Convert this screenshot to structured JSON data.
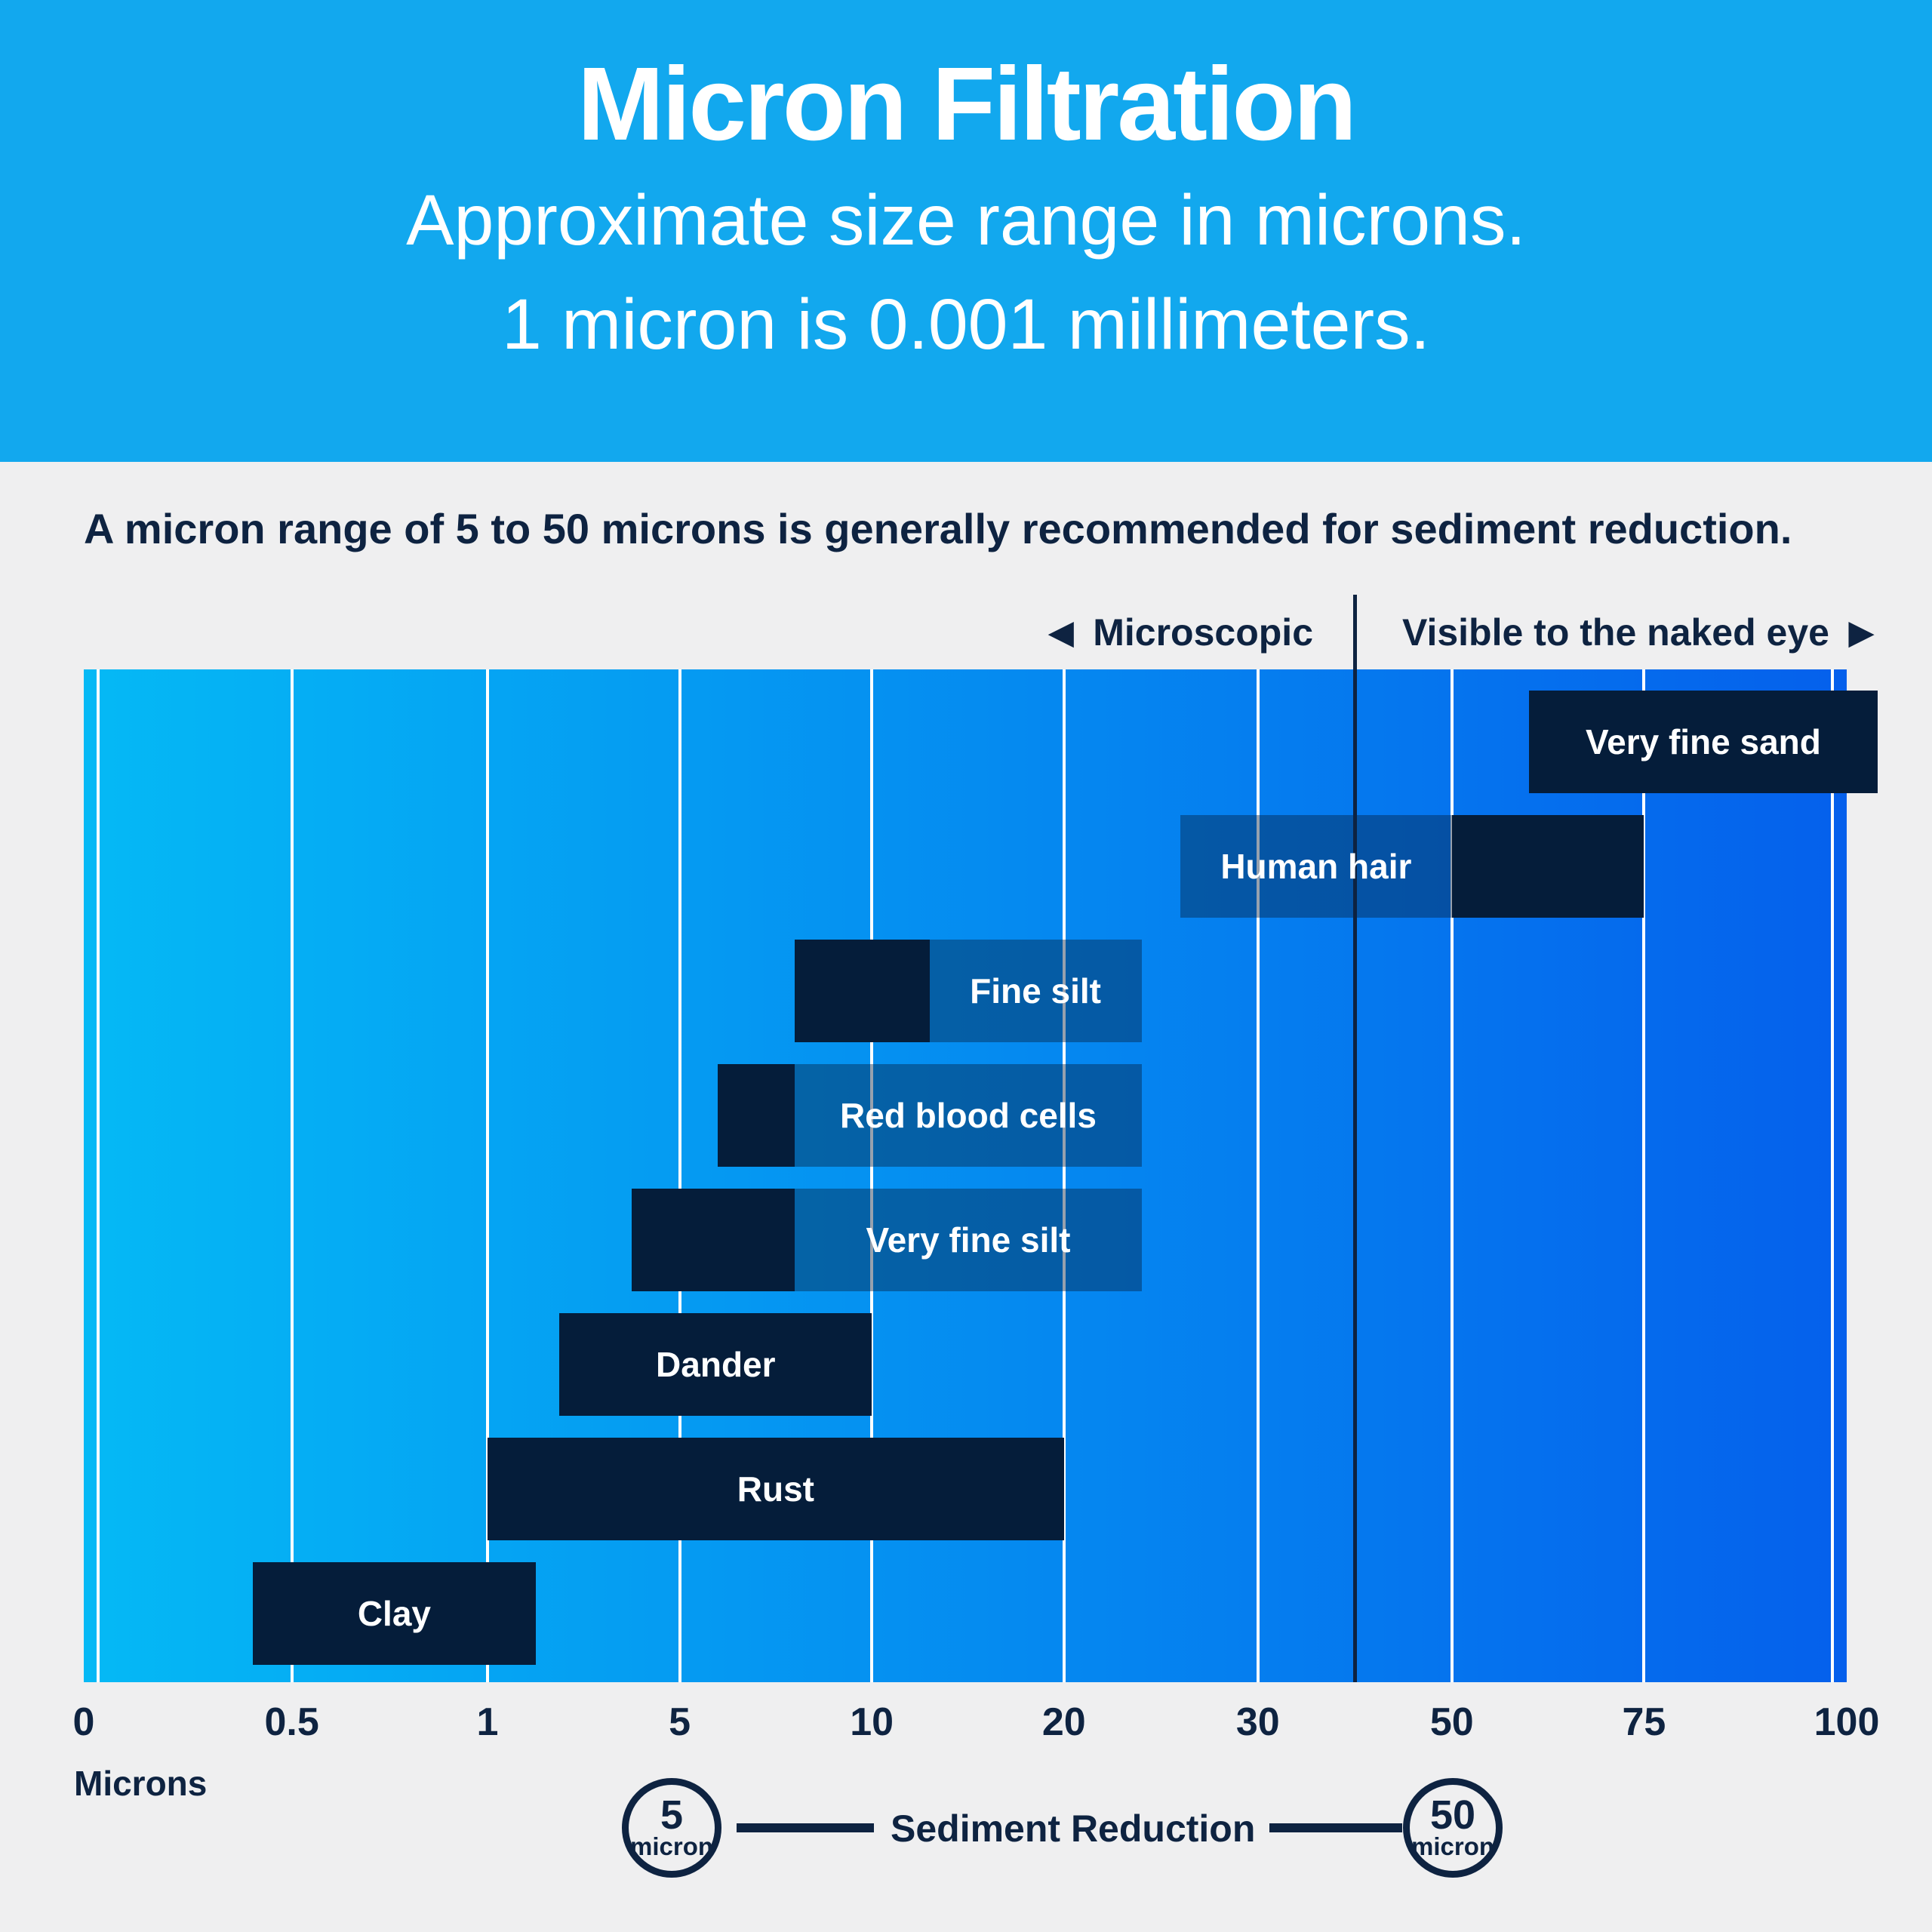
{
  "header": {
    "title": "Micron Filtration",
    "subtitle_line1": "Approximate size range in microns.",
    "subtitle_line2": "1 micron is 0.001 millimeters.",
    "bg_color": "#12A8EE"
  },
  "intro": {
    "text": "A micron range of 5 to 50 microns is generally recommended for sediment reduction."
  },
  "zones": {
    "left_arrow": "◀",
    "left_label": "Microscopic",
    "right_label": "Visible to the naked eye",
    "right_arrow": "▶"
  },
  "chart_data": {
    "type": "bar",
    "orientation": "horizontal-range",
    "xlabel": "Microns",
    "ticks": [
      0,
      0.5,
      1,
      5,
      10,
      20,
      30,
      50,
      75,
      100
    ],
    "grid_percents": [
      0.8,
      11.8,
      22.9,
      33.8,
      44.7,
      55.6,
      66.6,
      77.6,
      88.5,
      99.2
    ],
    "label_percents": [
      0,
      11.8,
      22.9,
      33.8,
      44.7,
      55.6,
      66.6,
      77.6,
      88.5,
      100
    ],
    "divider_value": 40,
    "gradient": [
      "#05B9F5",
      "#0560EC"
    ],
    "bar_color": "#051D3A",
    "panel_color": "rgba(7,31,61,0.42)",
    "items": [
      {
        "label": "Very fine sand",
        "range_microns": [
          60,
          100
        ],
        "solid": [
          60,
          106
        ],
        "panel": null,
        "label_in": "solid"
      },
      {
        "label": "Human hair",
        "range_microns": [
          50,
          75
        ],
        "solid": [
          50,
          75
        ],
        "panel": [
          26,
          50
        ],
        "label_in": "panel"
      },
      {
        "label": "Fine silt",
        "range_microns": [
          8,
          13
        ],
        "solid": [
          8,
          13
        ],
        "panel": [
          13,
          24
        ],
        "label_in": "panel"
      },
      {
        "label": "Red blood cells",
        "range_microns": [
          6,
          8
        ],
        "solid": [
          6,
          8
        ],
        "panel": [
          8,
          24
        ],
        "label_in": "panel"
      },
      {
        "label": "Very fine silt",
        "range_microns": [
          4,
          8
        ],
        "solid": [
          4,
          8
        ],
        "panel": [
          8,
          24
        ],
        "label_in": "panel"
      },
      {
        "label": "Dander",
        "range_microns": [
          2.5,
          10
        ],
        "solid": [
          2.5,
          10
        ],
        "panel": null,
        "label_in": "solid"
      },
      {
        "label": "Rust",
        "range_microns": [
          1,
          20
        ],
        "solid": [
          1,
          20
        ],
        "panel": null,
        "label_in": "solid"
      },
      {
        "label": "Clay",
        "range_microns": [
          0.4,
          2
        ],
        "solid": [
          0.4,
          2
        ],
        "panel": null,
        "label_in": "solid"
      }
    ]
  },
  "legend": {
    "left_circle": {
      "value": "5",
      "unit": "micron"
    },
    "right_circle": {
      "value": "50",
      "unit": "micron"
    },
    "label": "Sediment Reduction"
  },
  "colors": {
    "page_bg": "#EFEFF0",
    "navy_text": "#0E2341",
    "white": "#FFFFFF"
  }
}
